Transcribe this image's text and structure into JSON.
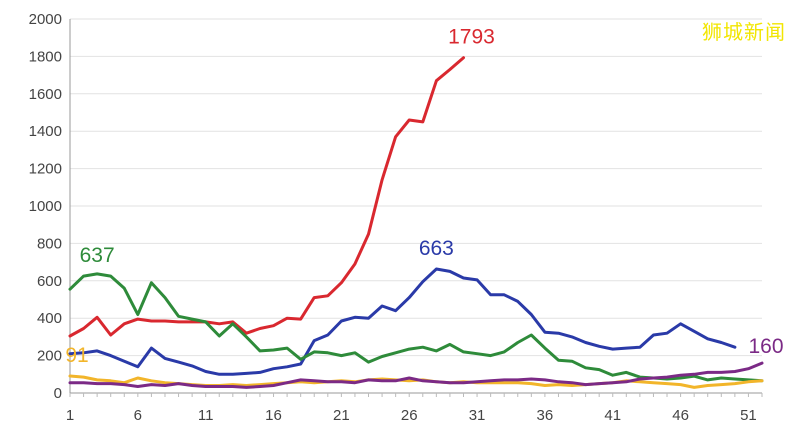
{
  "watermark": "狮城新闻",
  "chart_data": {
    "type": "line",
    "title": "",
    "xlabel": "",
    "ylabel": "",
    "xlim": [
      1,
      52
    ],
    "ylim": [
      0,
      2000
    ],
    "x_ticks": [
      1,
      6,
      11,
      16,
      21,
      26,
      31,
      36,
      41,
      46,
      51
    ],
    "y_ticks": [
      0,
      200,
      400,
      600,
      800,
      1000,
      1200,
      1400,
      1600,
      1800,
      2000
    ],
    "grid": true,
    "legend": "none",
    "series": [
      {
        "color": "#d9282f",
        "annotation": "1793",
        "x": [
          1,
          2,
          3,
          4,
          5,
          6,
          7,
          8,
          9,
          10,
          11,
          12,
          13,
          14,
          15,
          16,
          17,
          18,
          19,
          20,
          21,
          22,
          23,
          24,
          25,
          26,
          27,
          28,
          29,
          30
        ],
        "values": [
          305,
          345,
          405,
          310,
          370,
          395,
          385,
          385,
          380,
          380,
          380,
          370,
          380,
          320,
          345,
          360,
          400,
          395,
          510,
          520,
          590,
          690,
          850,
          1140,
          1370,
          1460,
          1450,
          1670,
          1730,
          1793
        ]
      },
      {
        "color": "#2a3aa8",
        "annotation": "663",
        "x": [
          1,
          2,
          3,
          4,
          5,
          6,
          7,
          8,
          9,
          10,
          11,
          12,
          13,
          14,
          15,
          16,
          17,
          18,
          19,
          20,
          21,
          22,
          23,
          24,
          25,
          26,
          27,
          28,
          29,
          30,
          31,
          32,
          33,
          34,
          35,
          36,
          37,
          38,
          39,
          40,
          41,
          42,
          43,
          44,
          45,
          46,
          47,
          48,
          49,
          50
        ],
        "values": [
          210,
          215,
          225,
          200,
          170,
          140,
          240,
          185,
          165,
          145,
          115,
          100,
          100,
          105,
          110,
          130,
          140,
          155,
          280,
          310,
          385,
          405,
          400,
          465,
          440,
          510,
          595,
          663,
          650,
          615,
          605,
          525,
          525,
          490,
          420,
          325,
          320,
          300,
          270,
          250,
          235,
          240,
          245,
          310,
          320,
          370,
          330,
          290,
          270,
          245
        ]
      },
      {
        "color": "#2e8b3a",
        "annotation": "637",
        "x": [
          1,
          2,
          3,
          4,
          5,
          6,
          7,
          8,
          9,
          10,
          11,
          12,
          13,
          14,
          15,
          16,
          17,
          18,
          19,
          20,
          21,
          22,
          23,
          24,
          25,
          26,
          27,
          28,
          29,
          30,
          31,
          32,
          33,
          34,
          35,
          36,
          37,
          38,
          39,
          40,
          41,
          42,
          43,
          44,
          45,
          46,
          47,
          48,
          49,
          50,
          51,
          52
        ],
        "values": [
          555,
          625,
          637,
          625,
          560,
          420,
          590,
          510,
          410,
          395,
          380,
          305,
          370,
          300,
          225,
          230,
          240,
          180,
          220,
          215,
          200,
          215,
          165,
          195,
          215,
          235,
          245,
          225,
          260,
          220,
          210,
          200,
          220,
          270,
          310,
          240,
          175,
          170,
          135,
          125,
          95,
          110,
          85,
          80,
          75,
          80,
          90,
          70,
          80,
          75,
          70,
          65
        ]
      },
      {
        "color": "#f2b52a",
        "annotation": "91",
        "x": [
          1,
          2,
          3,
          4,
          5,
          6,
          7,
          8,
          9,
          10,
          11,
          12,
          13,
          14,
          15,
          16,
          17,
          18,
          19,
          20,
          21,
          22,
          23,
          24,
          25,
          26,
          27,
          28,
          29,
          30,
          31,
          32,
          33,
          34,
          35,
          36,
          37,
          38,
          39,
          40,
          41,
          42,
          43,
          44,
          45,
          46,
          47,
          48,
          49,
          50,
          51,
          52
        ],
        "values": [
          91,
          85,
          70,
          65,
          55,
          80,
          65,
          55,
          50,
          45,
          40,
          40,
          45,
          40,
          45,
          50,
          55,
          60,
          55,
          60,
          65,
          60,
          70,
          75,
          70,
          65,
          70,
          60,
          55,
          60,
          55,
          55,
          55,
          55,
          50,
          40,
          45,
          40,
          45,
          50,
          55,
          65,
          60,
          55,
          50,
          45,
          30,
          40,
          45,
          50,
          60,
          65
        ]
      },
      {
        "color": "#7b2a86",
        "annotation": "160",
        "x": [
          1,
          2,
          3,
          4,
          5,
          6,
          7,
          8,
          9,
          10,
          11,
          12,
          13,
          14,
          15,
          16,
          17,
          18,
          19,
          20,
          21,
          22,
          23,
          24,
          25,
          26,
          27,
          28,
          29,
          30,
          31,
          32,
          33,
          34,
          35,
          36,
          37,
          38,
          39,
          40,
          41,
          42,
          43,
          44,
          45,
          46,
          47,
          48,
          49,
          50,
          51,
          52
        ],
        "values": [
          55,
          55,
          50,
          50,
          45,
          35,
          45,
          40,
          50,
          40,
          35,
          35,
          35,
          30,
          35,
          40,
          55,
          70,
          65,
          60,
          60,
          55,
          70,
          65,
          65,
          80,
          65,
          60,
          55,
          55,
          60,
          65,
          70,
          70,
          75,
          70,
          60,
          55,
          45,
          50,
          55,
          60,
          75,
          80,
          85,
          95,
          100,
          110,
          110,
          115,
          130,
          160
        ]
      }
    ]
  }
}
